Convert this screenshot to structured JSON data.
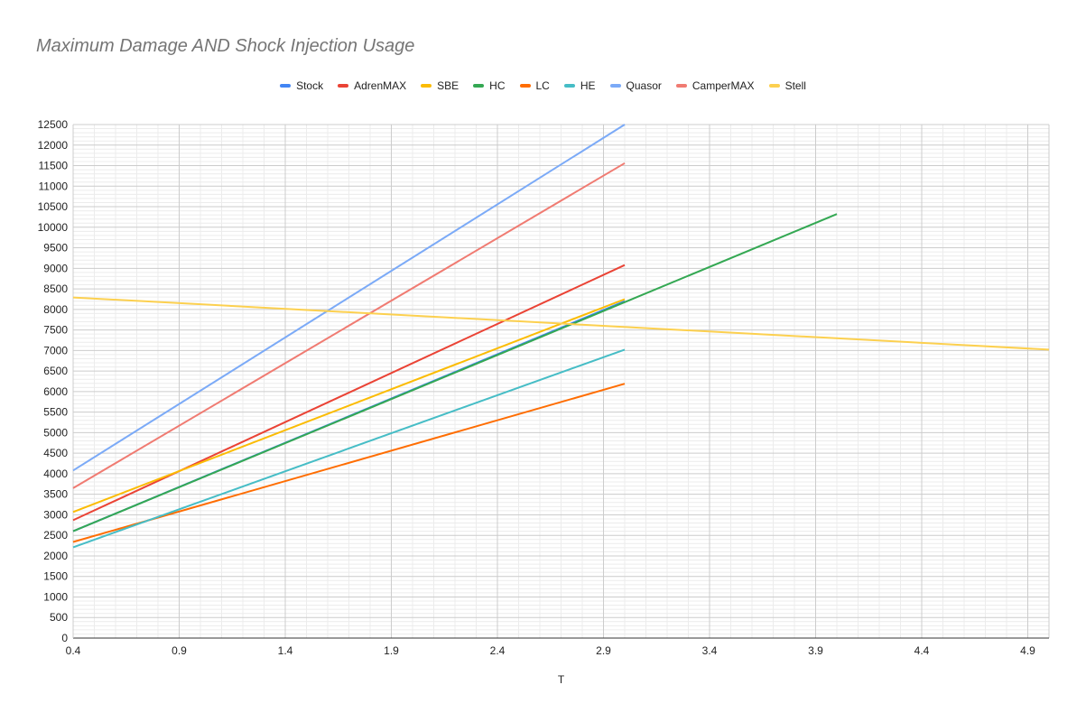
{
  "chart_data": {
    "type": "line",
    "title": "Maximum Damage AND Shock Injection Usage",
    "xlabel": "T",
    "ylabel": "",
    "xlim": [
      0.4,
      5.0
    ],
    "ylim": [
      0,
      12500
    ],
    "x_ticks": [
      "0.4",
      "0.9",
      "1.4",
      "1.9",
      "2.4",
      "2.9",
      "3.4",
      "3.9",
      "4.4",
      "4.9"
    ],
    "y_ticks": [
      "0",
      "500",
      "1000",
      "1500",
      "2000",
      "2500",
      "3000",
      "3500",
      "4000",
      "4500",
      "5000",
      "5500",
      "6000",
      "6500",
      "7000",
      "7500",
      "8000",
      "8500",
      "9000",
      "9500",
      "10000",
      "10500",
      "11000",
      "11500",
      "12000",
      "12500"
    ],
    "legend_position": "top",
    "grid": true,
    "series": [
      {
        "name": "Stock",
        "color": "#4285F4",
        "x": [
          0.4,
          3.0
        ],
        "y": [
          2600,
          8200
        ]
      },
      {
        "name": "AdrenMAX",
        "color": "#EA4335",
        "x": [
          0.4,
          3.0
        ],
        "y": [
          2870,
          9080
        ]
      },
      {
        "name": "SBE",
        "color": "#FBBC04",
        "x": [
          0.4,
          3.0
        ],
        "y": [
          3070,
          8250
        ]
      },
      {
        "name": "HC",
        "color": "#34A853",
        "x": [
          0.4,
          4.0
        ],
        "y": [
          2600,
          10320
        ]
      },
      {
        "name": "LC",
        "color": "#FF6D01",
        "x": [
          0.4,
          3.0
        ],
        "y": [
          2340,
          6190
        ]
      },
      {
        "name": "HE",
        "color": "#46BDC6",
        "x": [
          0.4,
          3.0
        ],
        "y": [
          2210,
          7020
        ]
      },
      {
        "name": "Quasor",
        "color": "#7BAAF7",
        "x": [
          0.4,
          3.0
        ],
        "y": [
          4080,
          12500
        ]
      },
      {
        "name": "CamperMAX",
        "color": "#F07B72",
        "x": [
          0.4,
          3.0
        ],
        "y": [
          3650,
          11560
        ]
      },
      {
        "name": "Stell",
        "color": "#FCD04F",
        "x": [
          0.4,
          5.0
        ],
        "y": [
          8290,
          7020
        ]
      }
    ]
  }
}
